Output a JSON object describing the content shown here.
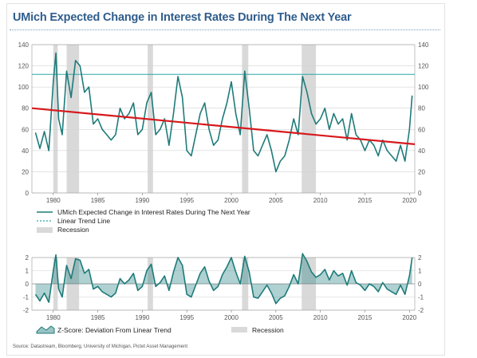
{
  "title": "UMich Expected Change in Interest Rates During The Next Year",
  "source": "Source: Datastream, Bloomberg, University of Michigan, Pictet Asset Management",
  "colors": {
    "main_series": "#1e7b7a",
    "trend": "#d7191c",
    "dotted_line": "#2aa8a8",
    "recession": "#d9d9d9",
    "title": "#2f5d8c"
  },
  "chart_data": [
    {
      "type": "line",
      "x_range": [
        1977.6,
        2020.6
      ],
      "ylim": [
        0,
        140
      ],
      "yticks": [
        0,
        20,
        40,
        60,
        80,
        100,
        120,
        140
      ],
      "xticks": [
        1980,
        1985,
        1990,
        1995,
        2000,
        2005,
        2010,
        2015,
        2020
      ],
      "grid": true,
      "legend_position": "below",
      "legend": {
        "series": "UMich Expected Change in Interest Rates During The Next Year",
        "trend": "Linear Trend Line",
        "recession": "Recession"
      },
      "recessions": [
        [
          1980.0,
          1980.5
        ],
        [
          1981.5,
          1982.9
        ],
        [
          1990.6,
          1991.2
        ],
        [
          2001.2,
          2001.9
        ],
        [
          2007.9,
          2009.5
        ]
      ],
      "reference_line": 112,
      "trend": {
        "start": [
          1977.6,
          80
        ],
        "end": [
          2020.6,
          46
        ]
      },
      "series": [
        {
          "name": "UMich Expected Change in Interest Rates During The Next Year",
          "x": [
            1978.0,
            1978.5,
            1979.0,
            1979.5,
            1980.0,
            1980.3,
            1980.6,
            1981.0,
            1981.5,
            1982.0,
            1982.5,
            1983.0,
            1983.5,
            1984.0,
            1984.5,
            1985.0,
            1985.5,
            1986.0,
            1986.5,
            1987.0,
            1987.5,
            1988.0,
            1988.5,
            1989.0,
            1989.5,
            1990.0,
            1990.5,
            1991.0,
            1991.5,
            1992.0,
            1992.5,
            1993.0,
            1993.5,
            1994.0,
            1994.5,
            1995.0,
            1995.5,
            1996.0,
            1996.5,
            1997.0,
            1997.5,
            1998.0,
            1998.5,
            1999.0,
            1999.5,
            2000.0,
            2000.5,
            2001.0,
            2001.5,
            2002.0,
            2002.5,
            2003.0,
            2003.5,
            2004.0,
            2004.5,
            2005.0,
            2005.5,
            2006.0,
            2006.5,
            2007.0,
            2007.5,
            2008.0,
            2008.5,
            2009.0,
            2009.5,
            2010.0,
            2010.5,
            2011.0,
            2011.5,
            2012.0,
            2012.5,
            2013.0,
            2013.5,
            2014.0,
            2014.5,
            2015.0,
            2015.5,
            2016.0,
            2016.5,
            2017.0,
            2017.5,
            2018.0,
            2018.5,
            2019.0,
            2019.5,
            2020.0,
            2020.3
          ],
          "values": [
            57,
            42,
            58,
            40,
            105,
            132,
            70,
            55,
            115,
            90,
            125,
            120,
            95,
            100,
            65,
            70,
            60,
            55,
            50,
            55,
            80,
            70,
            75,
            85,
            55,
            60,
            85,
            95,
            55,
            60,
            70,
            45,
            75,
            110,
            90,
            40,
            35,
            55,
            75,
            85,
            60,
            45,
            50,
            70,
            85,
            105,
            75,
            55,
            115,
            80,
            40,
            35,
            45,
            55,
            40,
            20,
            30,
            35,
            50,
            70,
            55,
            110,
            95,
            75,
            65,
            70,
            80,
            60,
            75,
            65,
            70,
            50,
            75,
            55,
            50,
            40,
            50,
            45,
            35,
            50,
            40,
            35,
            30,
            45,
            30,
            60,
            92
          ]
        }
      ]
    },
    {
      "type": "area",
      "x_range": [
        1977.6,
        2020.6
      ],
      "ylim": [
        -2,
        2
      ],
      "yticks": [
        -2,
        -1,
        0,
        1,
        2
      ],
      "xticks": [
        1980,
        1985,
        1990,
        1995,
        2000,
        2005,
        2010,
        2015,
        2020
      ],
      "grid": true,
      "legend_position": "below",
      "legend": {
        "series": "Z-Score: Deviation From Linear Trend",
        "recession": "Recession"
      },
      "recessions": [
        [
          1980.0,
          1980.5
        ],
        [
          1981.5,
          1982.9
        ],
        [
          1990.6,
          1991.2
        ],
        [
          2001.2,
          2001.9
        ],
        [
          2007.9,
          2009.5
        ]
      ],
      "series": [
        {
          "name": "Z-Score: Deviation From Linear Trend",
          "x": [
            1978.0,
            1978.5,
            1979.0,
            1979.5,
            1980.0,
            1980.3,
            1980.6,
            1981.0,
            1981.5,
            1982.0,
            1982.5,
            1983.0,
            1983.5,
            1984.0,
            1984.5,
            1985.0,
            1985.5,
            1986.0,
            1986.5,
            1987.0,
            1987.5,
            1988.0,
            1988.5,
            1989.0,
            1989.5,
            1990.0,
            1990.5,
            1991.0,
            1991.5,
            1992.0,
            1992.5,
            1993.0,
            1993.5,
            1994.0,
            1994.5,
            1995.0,
            1995.5,
            1996.0,
            1996.5,
            1997.0,
            1997.5,
            1998.0,
            1998.5,
            1999.0,
            1999.5,
            2000.0,
            2000.5,
            2001.0,
            2001.5,
            2002.0,
            2002.5,
            2003.0,
            2003.5,
            2004.0,
            2004.5,
            2005.0,
            2005.5,
            2006.0,
            2006.5,
            2007.0,
            2007.5,
            2008.0,
            2008.5,
            2009.0,
            2009.5,
            2010.0,
            2010.5,
            2011.0,
            2011.5,
            2012.0,
            2012.5,
            2013.0,
            2013.5,
            2014.0,
            2014.5,
            2015.0,
            2015.5,
            2016.0,
            2016.5,
            2017.0,
            2017.5,
            2018.0,
            2018.5,
            2019.0,
            2019.5,
            2020.0,
            2020.3
          ],
          "values": [
            -0.8,
            -1.3,
            -0.7,
            -1.4,
            1.0,
            2.2,
            -0.4,
            -1.0,
            1.4,
            0.4,
            1.9,
            1.8,
            0.8,
            1.1,
            -0.4,
            -0.2,
            -0.6,
            -0.8,
            -1.0,
            -0.7,
            0.4,
            0.0,
            0.3,
            0.8,
            -0.5,
            -0.2,
            1.0,
            1.5,
            -0.2,
            0.1,
            0.6,
            -0.5,
            0.9,
            2.0,
            1.4,
            -0.8,
            -1.0,
            -0.1,
            0.8,
            1.3,
            0.2,
            -0.5,
            -0.2,
            0.7,
            1.3,
            2.0,
            0.9,
            0.0,
            2.1,
            0.9,
            -1.0,
            -1.1,
            -0.6,
            -0.1,
            -0.7,
            -1.5,
            -1.1,
            -0.9,
            -0.2,
            0.7,
            0.0,
            2.3,
            1.7,
            0.9,
            0.5,
            0.7,
            1.1,
            0.3,
            1.0,
            0.6,
            0.8,
            -0.1,
            1.0,
            0.1,
            -0.1,
            -0.5,
            0.0,
            -0.2,
            -0.6,
            0.1,
            -0.4,
            -0.6,
            -0.8,
            -0.1,
            -0.8,
            0.6,
            2.0
          ]
        }
      ]
    }
  ]
}
